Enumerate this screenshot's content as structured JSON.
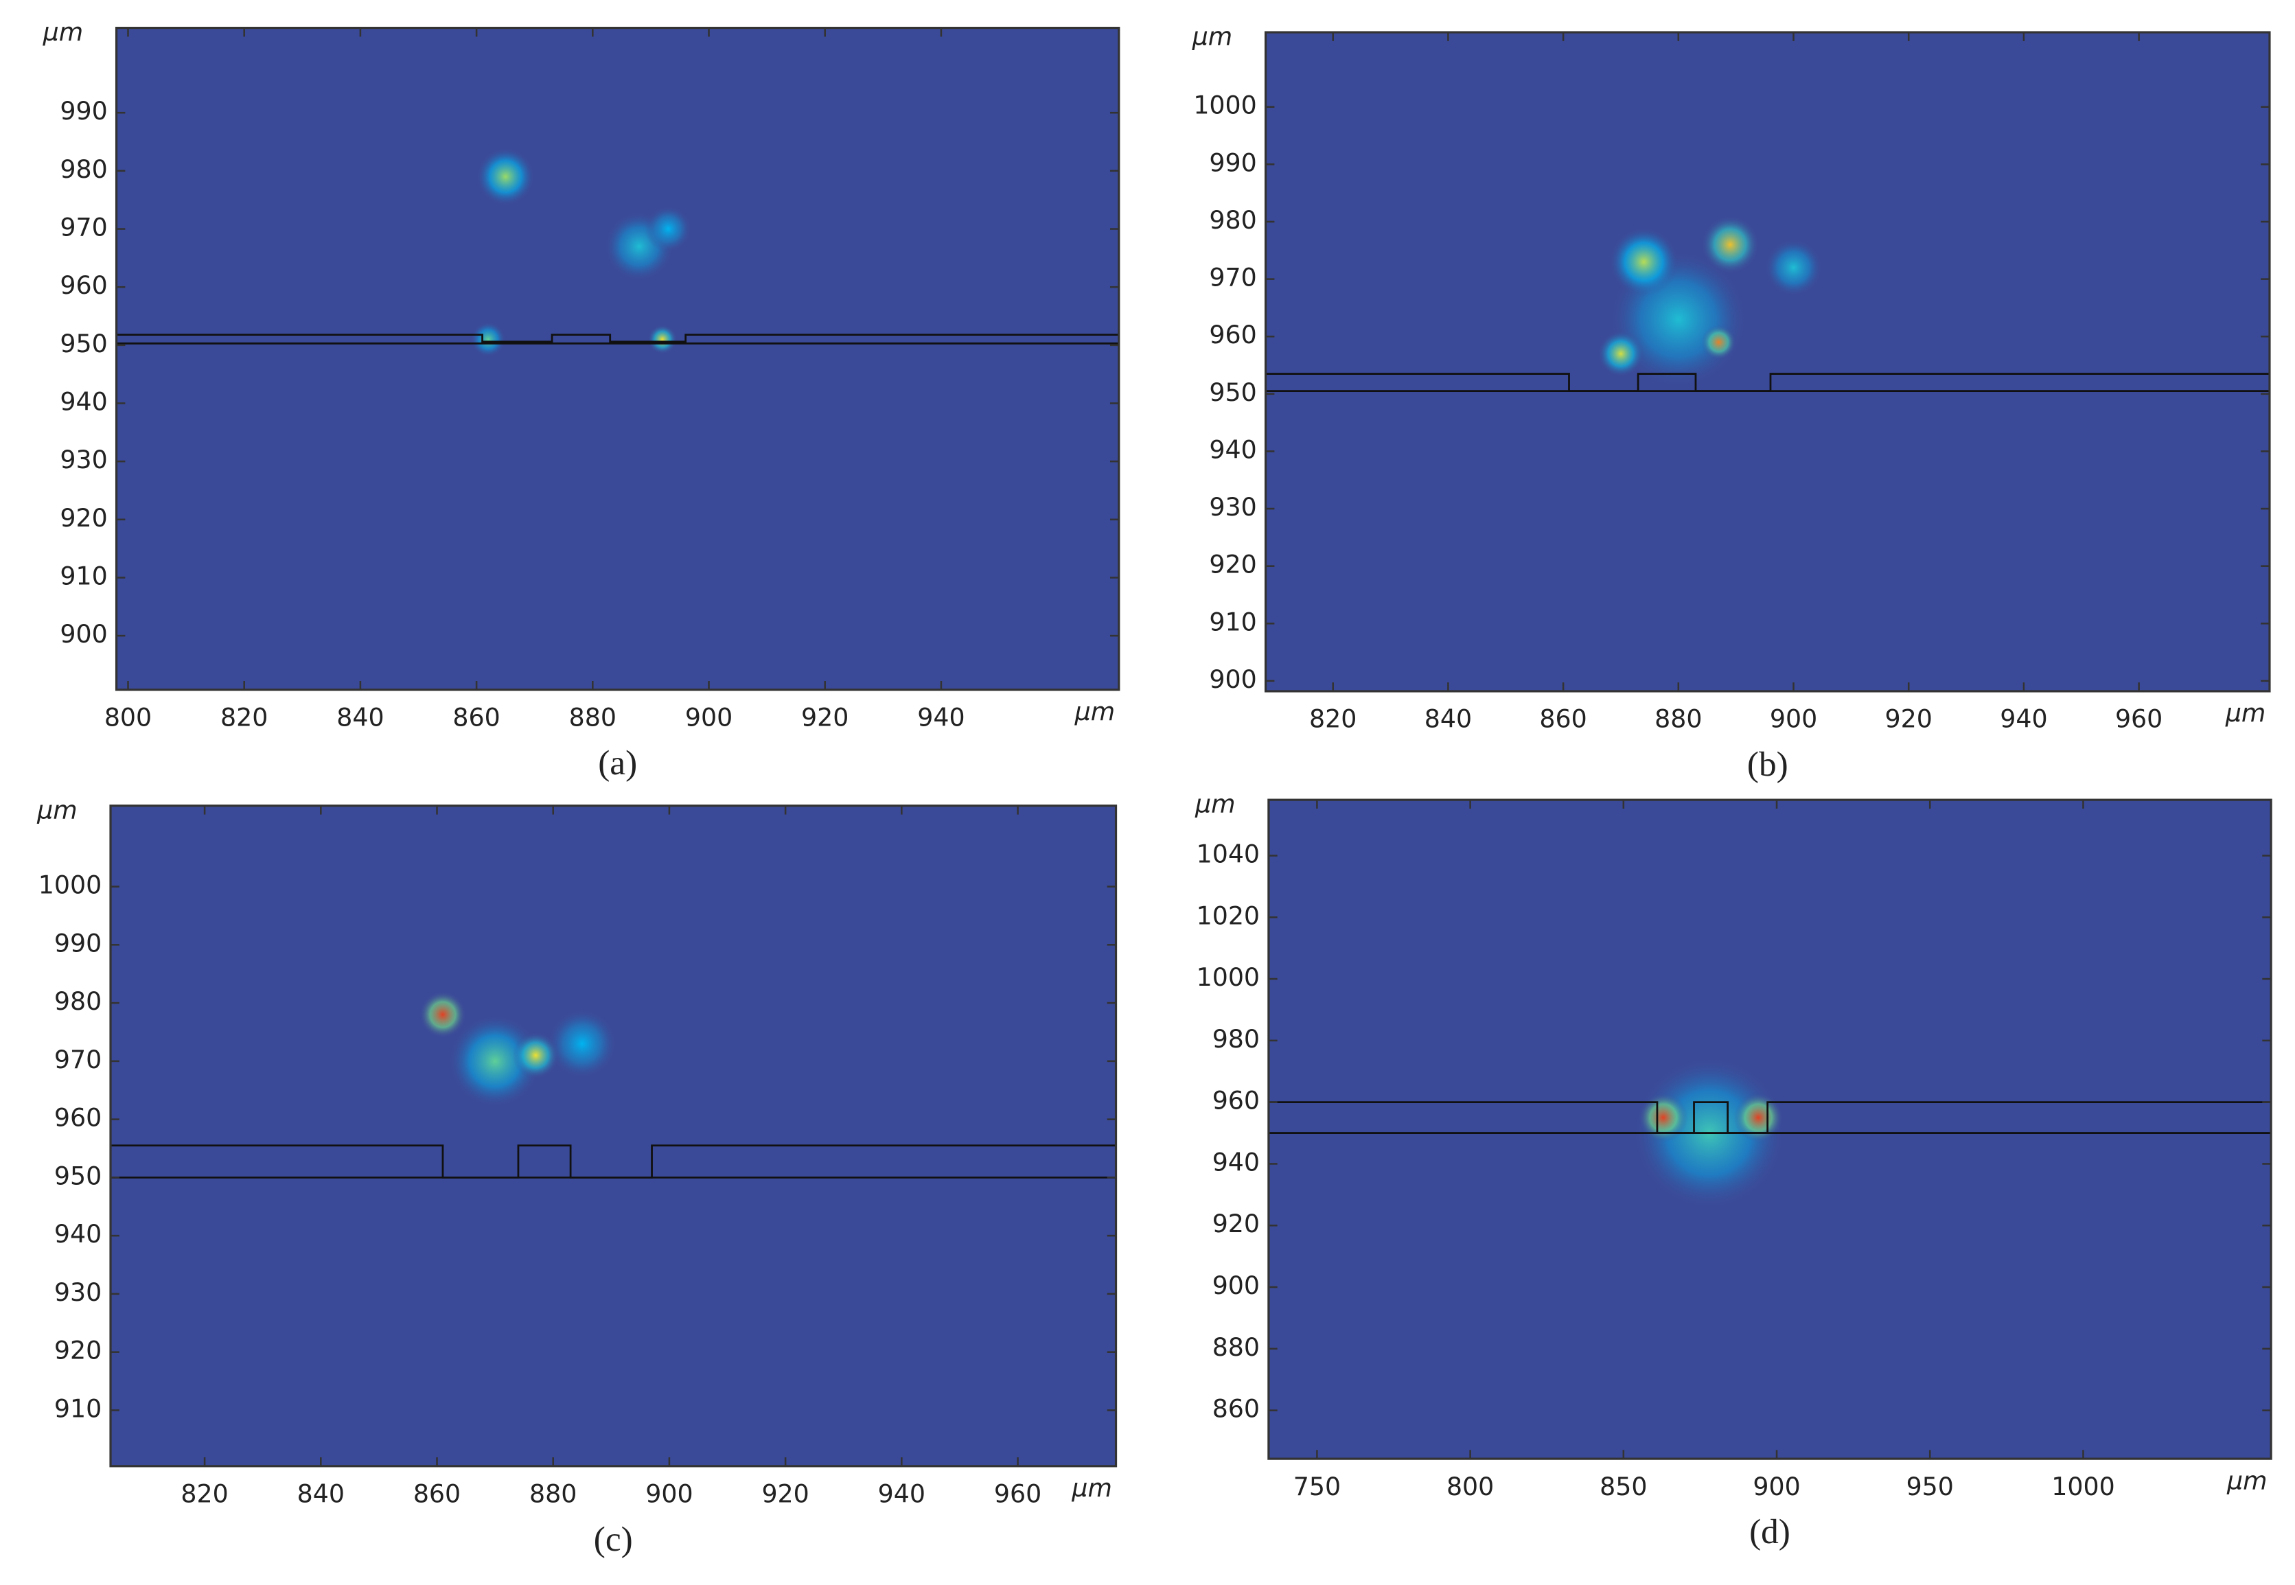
{
  "chart_data": [
    {
      "type": "field",
      "caption": "(a)",
      "x_unit": "μm",
      "y_unit": "μm",
      "color": "#3b4a98",
      "outline_color": "#111111",
      "xlim": [
        798,
        970.6
      ],
      "xticks": [
        800,
        820,
        840,
        860,
        880,
        900,
        920,
        940
      ],
      "ylim": [
        890.7,
        1004.6
      ],
      "yticks": [
        900,
        910,
        920,
        930,
        940,
        950,
        960,
        970,
        980,
        990
      ],
      "outline": {
        "x": [
          798,
          861,
          861,
          873,
          873,
          883,
          883,
          896,
          896,
          970.6
        ],
        "y": [
          951.8,
          951.8,
          950.6,
          950.6,
          951.8,
          951.8,
          950.6,
          950.6,
          951.8,
          951.8
        ]
      },
      "base": 950.3,
      "hotspots": {
        "x": [
          865,
          888,
          893,
          862,
          892
        ],
        "y": [
          979,
          967,
          970,
          951,
          951
        ],
        "r": [
          5,
          6,
          4,
          3,
          2.5
        ],
        "intensity": [
          0.55,
          0.35,
          0.3,
          0.45,
          0.7
        ]
      }
    },
    {
      "type": "field",
      "caption": "(b)",
      "x_unit": "μm",
      "y_unit": "μm",
      "color": "#3b4a98",
      "outline_color": "#111111",
      "xlim": [
        808.3,
        982.7
      ],
      "xticks": [
        820,
        840,
        860,
        880,
        900,
        920,
        940,
        960
      ],
      "ylim": [
        898.2,
        1013
      ],
      "yticks": [
        900,
        910,
        920,
        930,
        940,
        950,
        960,
        970,
        980,
        990,
        1000
      ],
      "outline": {
        "x": [
          808.3,
          861,
          861,
          873,
          873,
          883,
          883,
          896,
          896,
          982.7
        ],
        "y": [
          953.5,
          953.5,
          950.5,
          950.5,
          953.5,
          953.5,
          950.5,
          950.5,
          953.5,
          953.5
        ]
      },
      "base": 950.5,
      "hotspots": {
        "x": [
          880,
          874,
          889,
          900,
          870,
          887
        ],
        "y": [
          963,
          973,
          976,
          972,
          957,
          959
        ],
        "r": [
          12,
          6,
          5,
          5,
          4,
          3
        ],
        "intensity": [
          0.35,
          0.6,
          0.75,
          0.35,
          0.65,
          0.85
        ]
      }
    },
    {
      "type": "field",
      "caption": "(c)",
      "x_unit": "μm",
      "y_unit": "μm",
      "color": "#3b4a98",
      "outline_color": "#111111",
      "xlim": [
        803.8,
        976.9
      ],
      "xticks": [
        820,
        840,
        860,
        880,
        900,
        920,
        940,
        960
      ],
      "ylim": [
        900.4,
        1013.9
      ],
      "yticks": [
        910,
        920,
        930,
        940,
        950,
        960,
        970,
        980,
        990,
        1000
      ],
      "outline": {
        "x": [
          803.8,
          861,
          861,
          874,
          874,
          883,
          883,
          897,
          897,
          976.9
        ],
        "y": [
          955.5,
          955.5,
          950,
          950,
          955.5,
          955.5,
          950,
          950,
          955.5,
          955.5
        ]
      },
      "base": 950,
      "hotspots": {
        "x": [
          870,
          885,
          861,
          877
        ],
        "y": [
          970,
          973,
          978,
          971
        ],
        "r": [
          8,
          6,
          4,
          4
        ],
        "intensity": [
          0.45,
          0.3,
          0.95,
          0.7
        ]
      }
    },
    {
      "type": "field",
      "caption": "(d)",
      "x_unit": "μm",
      "y_unit": "μm",
      "color": "#3b4a98",
      "outline_color": "#111111",
      "xlim": [
        734.2,
        1061.3
      ],
      "xticks": [
        750,
        800,
        850,
        900,
        950,
        1000
      ],
      "ylim": [
        844.3,
        1058.1
      ],
      "yticks": [
        860,
        880,
        900,
        920,
        940,
        960,
        980,
        1000,
        1020,
        1040
      ],
      "outline": {
        "x": [
          734.2,
          861,
          861,
          873,
          873,
          884,
          884,
          897,
          897,
          1061.3
        ],
        "y": [
          960,
          960,
          950,
          950,
          960,
          960,
          950,
          950,
          960,
          960
        ]
      },
      "base": 950,
      "hotspots": {
        "x": [
          878,
          863,
          894
        ],
        "y": [
          950,
          955,
          955
        ],
        "r": [
          25,
          8,
          8
        ],
        "intensity": [
          0.4,
          0.95,
          0.95
        ]
      }
    }
  ]
}
